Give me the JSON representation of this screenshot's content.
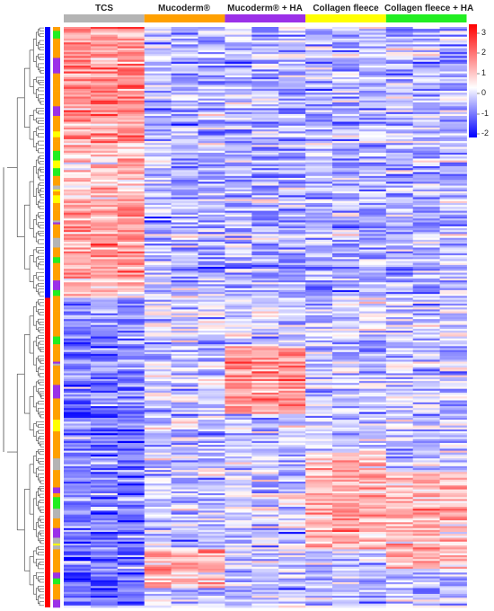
{
  "chart_data": {
    "type": "heatmap",
    "title": "",
    "columns_per_group": 3,
    "row_count": 300,
    "value_range": [
      -2.5,
      3.3
    ],
    "groups": [
      {
        "name": "TCS",
        "color": "#b4b4b4"
      },
      {
        "name": "Mucoderm®",
        "color": "#ffa000"
      },
      {
        "name": "Mucoderm® + HA",
        "color": "#9b30e8"
      },
      {
        "name": "Collagen fleece",
        "color": "#ffff00"
      },
      {
        "name": "Collagen fleece + HA",
        "color": "#22ee22"
      }
    ],
    "colorbar": {
      "ticks": [
        3,
        2,
        1,
        0,
        -1,
        -2
      ],
      "colors": [
        "#0000ff",
        "#ffffff",
        "#ff0000"
      ]
    },
    "cluster_annotation": {
      "colors": [
        "#0000ff",
        "#ff0000"
      ],
      "rows": [
        140,
        160
      ]
    },
    "row_group_colors": [
      "#ffa000",
      "#9b30e8",
      "#22ee22",
      "#ffff00",
      "#b4b4b4"
    ]
  }
}
